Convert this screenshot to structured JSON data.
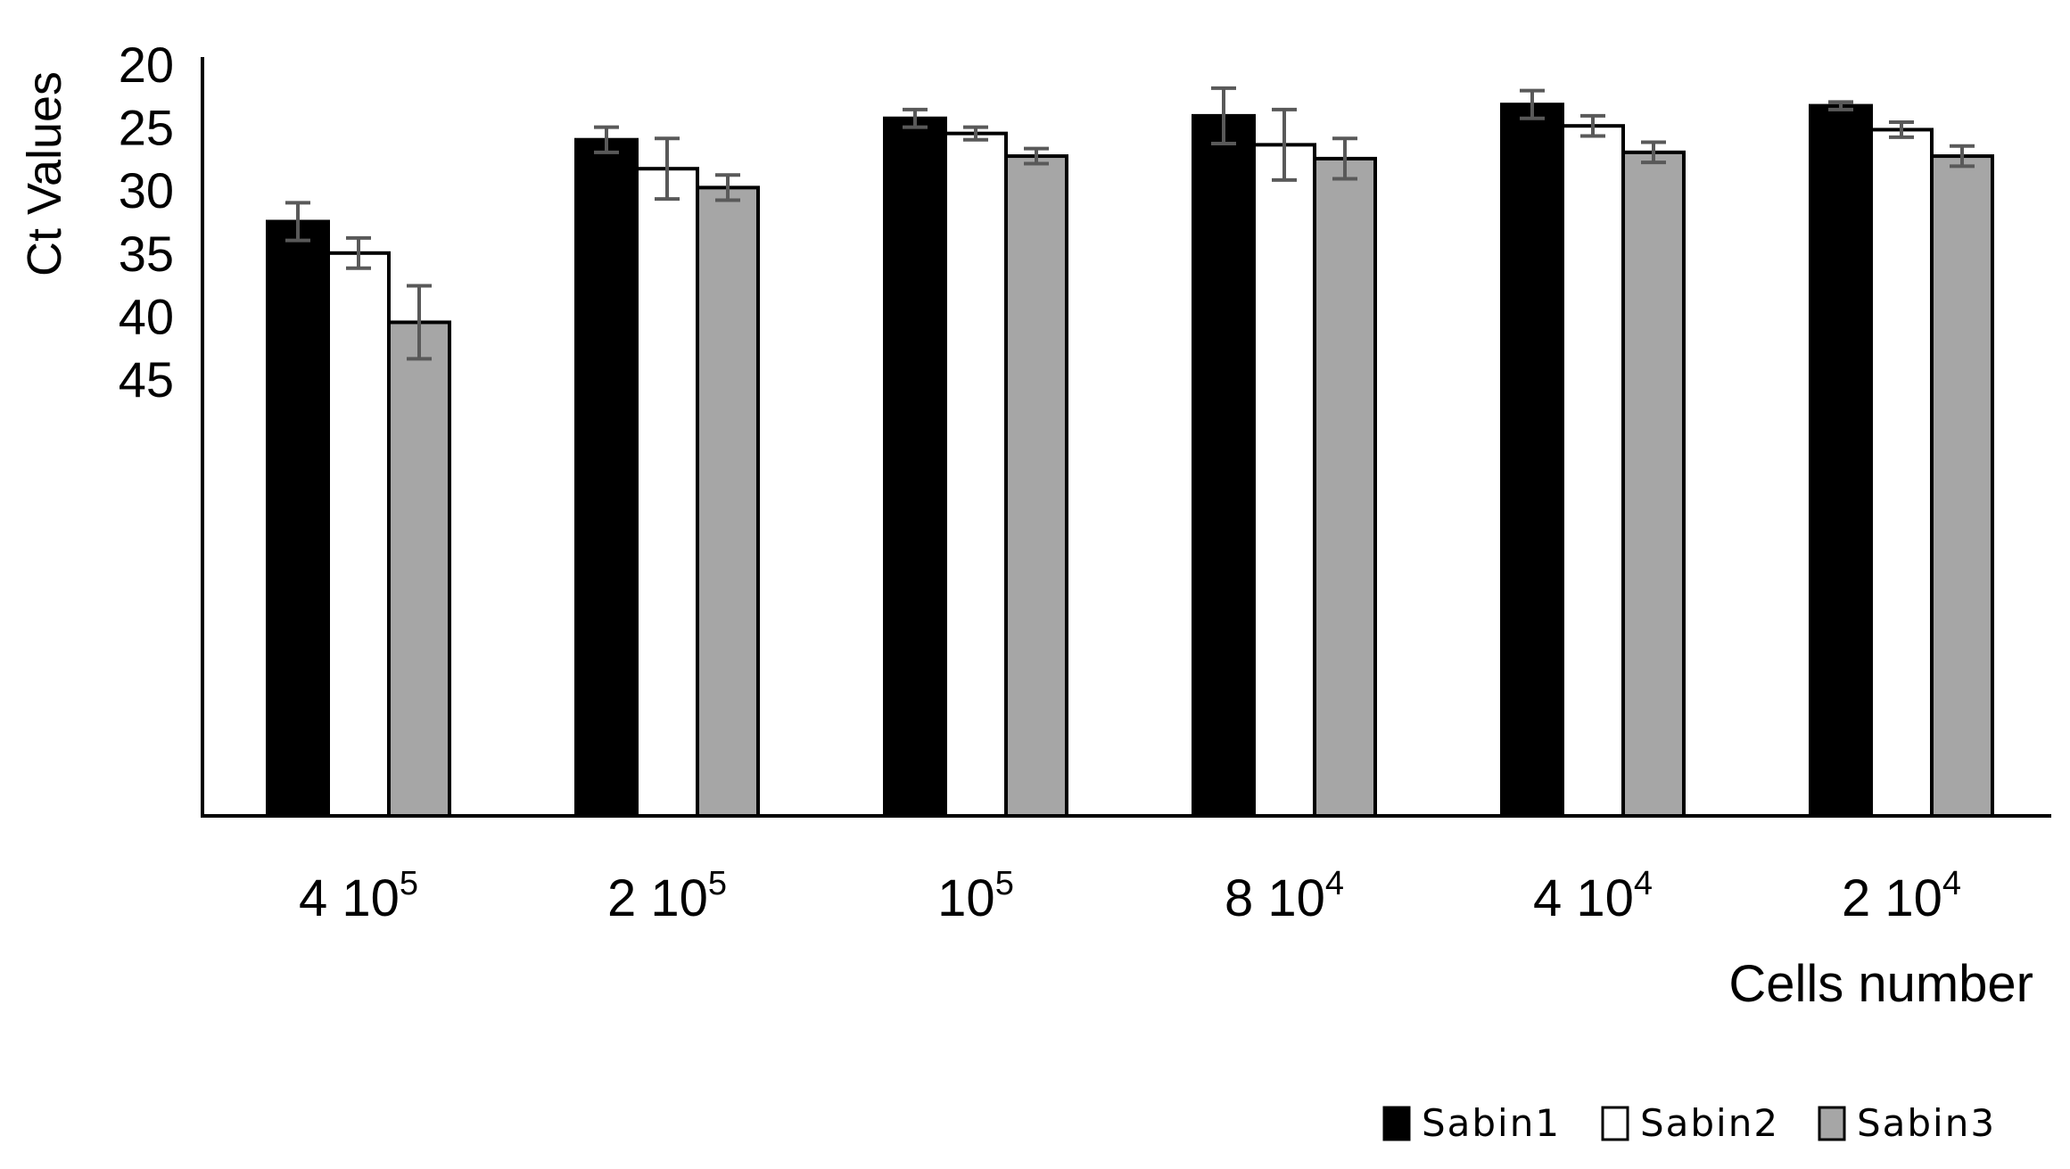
{
  "chart_data": {
    "type": "bar",
    "xlabel": "Cells number",
    "ylabel": "Ct Values",
    "ylim": [
      20,
      50
    ],
    "y_axis_reversed": true,
    "y_ticks": [
      20,
      25,
      30,
      35,
      40,
      45
    ],
    "grid": false,
    "legend_position": "bottom-right",
    "categories": [
      {
        "base": "4 10",
        "exp": "5"
      },
      {
        "base": "2 10",
        "exp": "5"
      },
      {
        "base": "10",
        "exp": "5"
      },
      {
        "base": "8 10",
        "exp": "4"
      },
      {
        "base": "4 10",
        "exp": "4"
      },
      {
        "base": "2 10",
        "exp": "4"
      }
    ],
    "series": [
      {
        "name": "Sabin1",
        "color": "#000000",
        "values": [
          32.5,
          26.0,
          24.3,
          24.1,
          23.2,
          23.3
        ],
        "errors": [
          1.5,
          1.0,
          0.7,
          2.2,
          1.1,
          0.3
        ]
      },
      {
        "name": "Sabin2",
        "color": "#ffffff",
        "values": [
          35.0,
          28.3,
          25.5,
          26.4,
          24.9,
          25.2
        ],
        "errors": [
          1.2,
          2.4,
          0.5,
          2.8,
          0.8,
          0.6
        ]
      },
      {
        "name": "Sabin3",
        "color": "#a6a6a6",
        "values": [
          40.5,
          29.8,
          27.3,
          27.5,
          27.0,
          27.3
        ],
        "errors": [
          2.9,
          1.0,
          0.6,
          1.6,
          0.8,
          0.8
        ]
      }
    ],
    "bar_outline_color": "#000000",
    "error_bar_color": "#595959"
  }
}
